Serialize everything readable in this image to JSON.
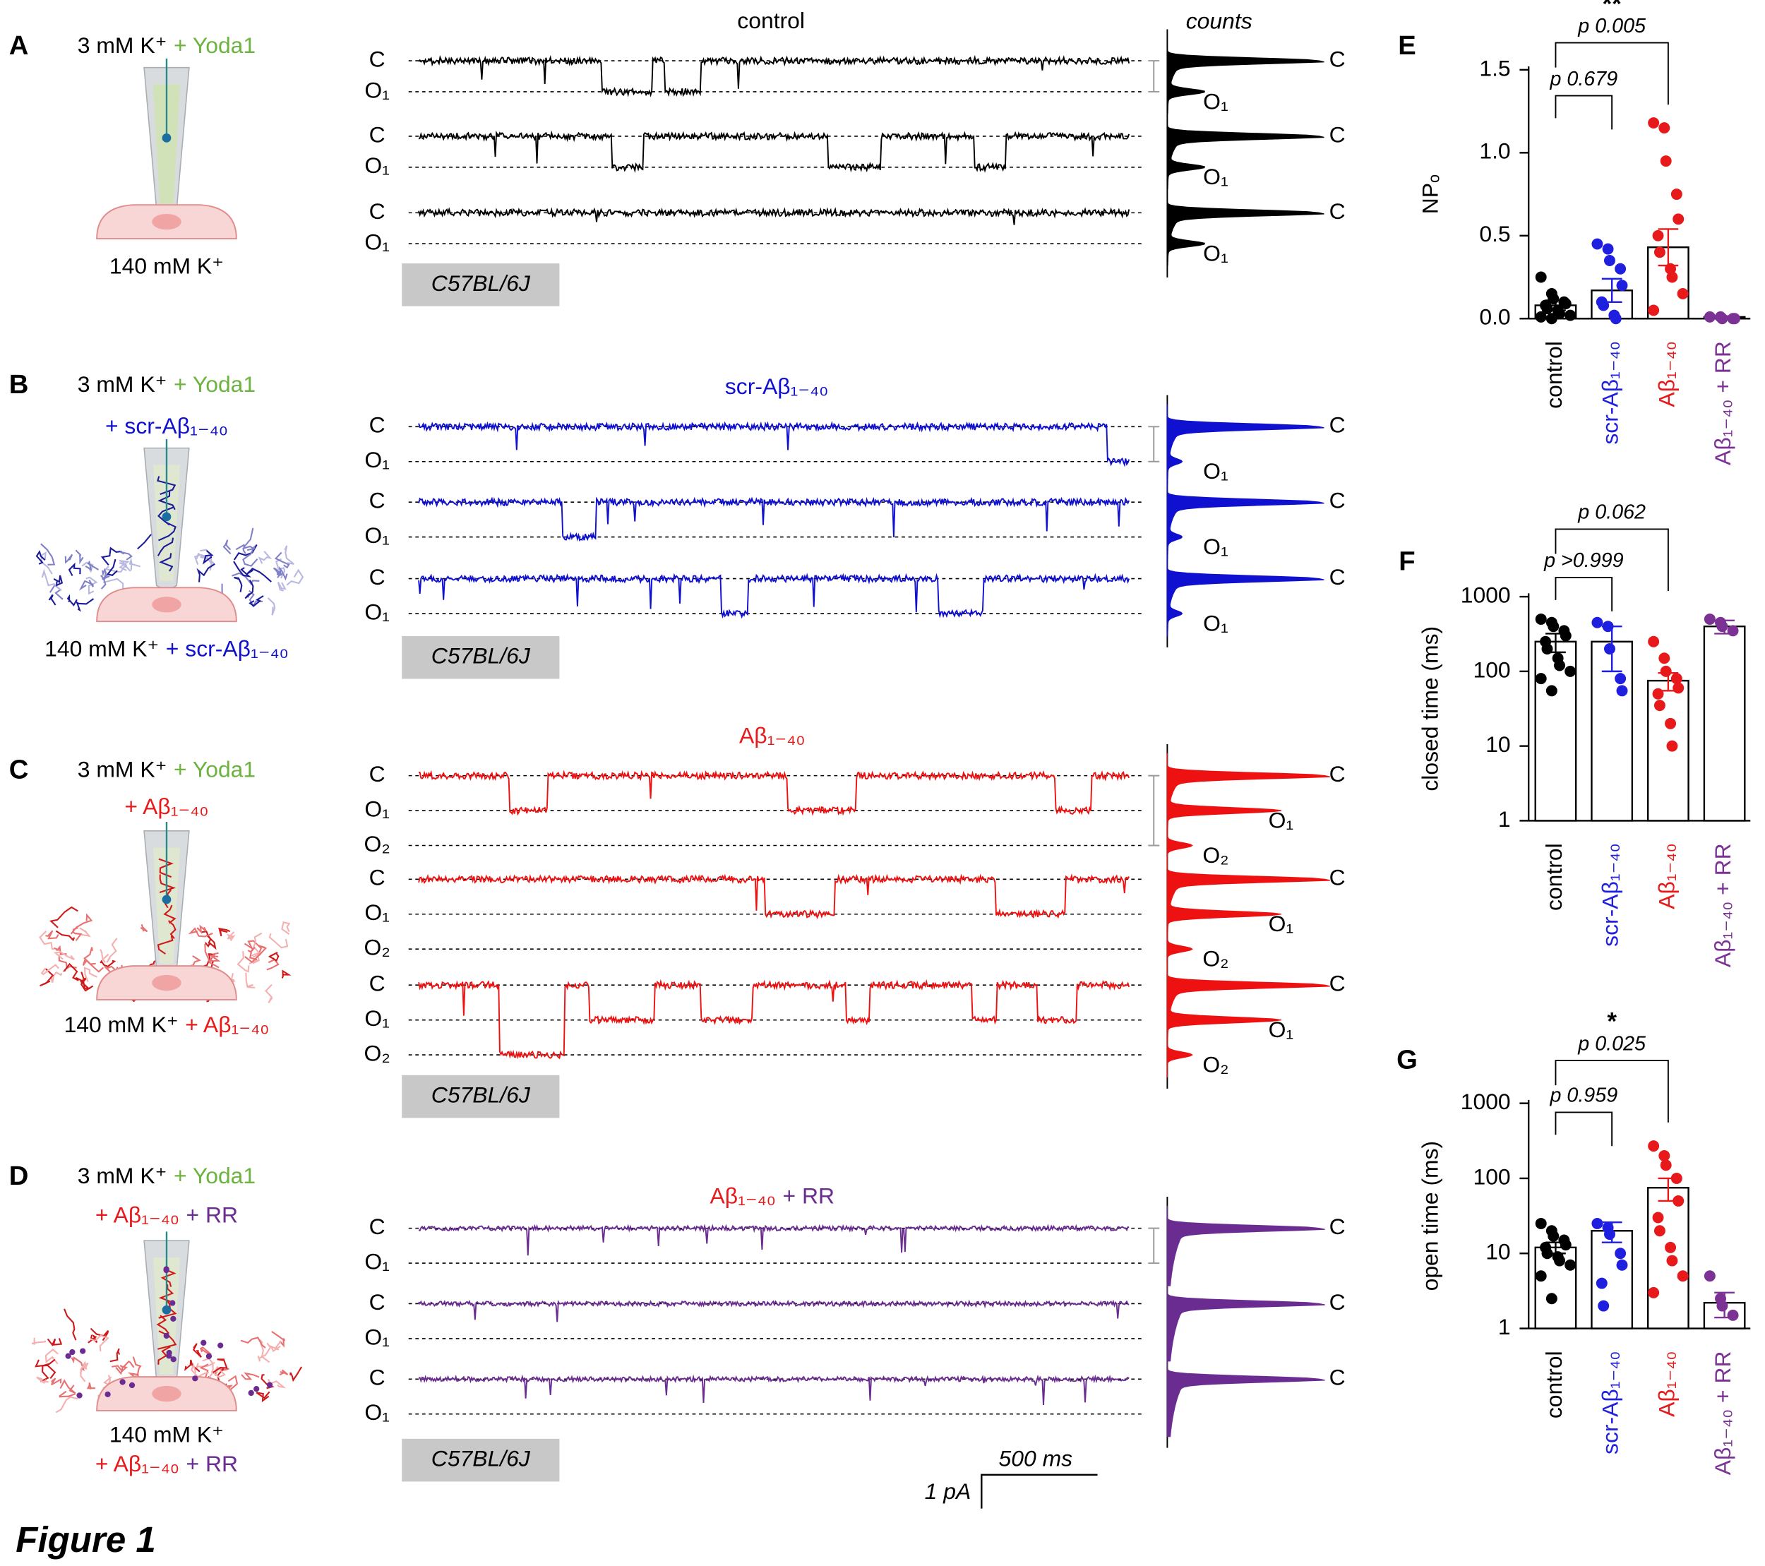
{
  "figure_label": "Figure 1",
  "scale_bar": {
    "time": "500 ms",
    "current": "1 pA"
  },
  "panels": [
    {
      "letter": "A",
      "solution_top": [
        [
          {
            "text": "3 mM K⁺",
            "color": "#000000"
          },
          {
            "text": "+ Yoda1",
            "color": "#6db33f"
          }
        ]
      ],
      "solution_bottom": [
        [
          {
            "text": "140 mM K⁺",
            "color": "#000000"
          }
        ]
      ],
      "trace_title": [
        {
          "text": "control",
          "color": "#000000"
        }
      ],
      "trace_color": "#000000",
      "histogram_header": "counts",
      "strain": "C57BL/6J",
      "traces": [
        {
          "levels": [
            "C",
            "O₁"
          ],
          "histogram_labels": [
            "C",
            "O₁"
          ]
        },
        {
          "levels": [
            "C",
            "O₁"
          ],
          "histogram_labels": [
            "C",
            "O₁"
          ]
        },
        {
          "levels": [
            "C",
            "O₁"
          ],
          "histogram_labels": [
            "C",
            "O₁"
          ]
        }
      ]
    },
    {
      "letter": "B",
      "solution_top": [
        [
          {
            "text": "3 mM K⁺",
            "color": "#000000"
          },
          {
            "text": "+ Yoda1",
            "color": "#6db33f"
          }
        ],
        [
          {
            "text": "+ scr-Aβ₁₋₄₀",
            "color": "#1010d0"
          }
        ]
      ],
      "solution_bottom": [
        [
          {
            "text": "140 mM K⁺",
            "color": "#000000"
          },
          {
            "text": "+ scr-Aβ₁₋₄₀",
            "color": "#1010d0"
          }
        ]
      ],
      "trace_title": [
        {
          "text": "scr-Aβ₁₋₄₀",
          "color": "#1010d0"
        }
      ],
      "trace_color": "#1010d0",
      "strain": "C57BL/6J",
      "traces": [
        {
          "levels": [
            "C",
            "O₁"
          ],
          "histogram_labels": [
            "C",
            "O₁"
          ]
        },
        {
          "levels": [
            "C",
            "O₁"
          ],
          "histogram_labels": [
            "C",
            "O₁"
          ]
        },
        {
          "levels": [
            "C",
            "O₁"
          ],
          "histogram_labels": [
            "C",
            "O₁"
          ]
        }
      ]
    },
    {
      "letter": "C",
      "solution_top": [
        [
          {
            "text": "3 mM K⁺",
            "color": "#000000"
          },
          {
            "text": "+ Yoda1",
            "color": "#6db33f"
          }
        ],
        [
          {
            "text": "+ Aβ₁₋₄₀",
            "color": "#e8191a"
          }
        ]
      ],
      "solution_bottom": [
        [
          {
            "text": "140 mM K⁺",
            "color": "#000000"
          },
          {
            "text": "+ Aβ₁₋₄₀",
            "color": "#e8191a"
          }
        ]
      ],
      "trace_title": [
        {
          "text": "Aβ₁₋₄₀",
          "color": "#e8191a"
        }
      ],
      "trace_color": "#ee1111",
      "strain": "C57BL/6J",
      "traces": [
        {
          "levels": [
            "C",
            "O₁",
            "O₂"
          ],
          "histogram_labels": [
            "C",
            "O₁",
            "O₂"
          ]
        },
        {
          "levels": [
            "C",
            "O₁",
            "O₂"
          ],
          "histogram_labels": [
            "C",
            "O₁",
            "O₂"
          ]
        },
        {
          "levels": [
            "C",
            "O₁",
            "O₂"
          ],
          "histogram_labels": [
            "C",
            "O₁",
            "O₂"
          ]
        }
      ]
    },
    {
      "letter": "D",
      "solution_top": [
        [
          {
            "text": "3 mM K⁺",
            "color": "#000000"
          },
          {
            "text": "+ Yoda1",
            "color": "#6db33f"
          }
        ],
        [
          {
            "text": "+ Aβ₁₋₄₀",
            "color": "#e8191a"
          },
          {
            "text": "+ RR",
            "color": "#6a2c91"
          }
        ]
      ],
      "solution_bottom": [
        [
          {
            "text": "140 mM K⁺",
            "color": "#000000"
          }
        ],
        [
          {
            "text": "+ Aβ₁₋₄₀",
            "color": "#e8191a"
          },
          {
            "text": "+ RR",
            "color": "#6a2c91"
          }
        ]
      ],
      "trace_title": [
        {
          "text": "Aβ₁₋₄₀",
          "color": "#e8191a"
        },
        {
          "text": "+ RR",
          "color": "#6a2c91"
        }
      ],
      "trace_color": "#6a2c91",
      "strain": "C57BL/6J",
      "traces": [
        {
          "levels": [
            "C",
            "O₁"
          ],
          "histogram_labels": [
            "C"
          ]
        },
        {
          "levels": [
            "C",
            "O₁"
          ],
          "histogram_labels": [
            "C"
          ]
        },
        {
          "levels": [
            "C",
            "O₁"
          ],
          "histogram_labels": [
            "C"
          ]
        }
      ]
    }
  ],
  "chart_data": [
    {
      "type": "bar",
      "letter": "E",
      "ylabel": "NPₒ",
      "categories": [
        "control",
        "scr-Aβ₁₋₄₀",
        "Aβ₁₋₄₀",
        "Aβ₁₋₄₀ + RR"
      ],
      "colors": [
        "#000000",
        "#1f1fe0",
        "#e8191a",
        "#7b3294"
      ],
      "values": [
        0.08,
        0.17,
        0.43,
        0.01
      ],
      "errors": [
        0.03,
        0.07,
        0.11,
        0.005
      ],
      "points": [
        [
          0.25,
          0.15,
          0.12,
          0.1,
          0.09,
          0.08,
          0.06,
          0.05,
          0.03,
          0.02,
          0.01,
          0
        ],
        [
          0.45,
          0.42,
          0.35,
          0.3,
          0.2,
          0.1,
          0.08,
          0.02,
          0
        ],
        [
          1.18,
          1.15,
          0.95,
          0.75,
          0.6,
          0.5,
          0.4,
          0.3,
          0.25,
          0.15,
          0.05
        ],
        [
          0.01,
          0.01,
          0,
          0,
          0
        ]
      ],
      "ylim": [
        0,
        1.5
      ],
      "yticks": [
        {
          "value": 0,
          "label": "0.0"
        },
        0.5,
        {
          "value": 1,
          "label": "1.0"
        },
        1.5
      ],
      "log_scale": false,
      "comparisons": [
        {
          "label": "p 0.679"
        },
        {
          "label": "p 0.005",
          "stars": "**"
        }
      ]
    },
    {
      "type": "bar",
      "letter": "F",
      "ylabel": "closed time (ms)",
      "categories": [
        "control",
        "scr-Aβ₁₋₄₀",
        "Aβ₁₋₄₀",
        "Aβ₁₋₄₀ + RR"
      ],
      "colors": [
        "#000000",
        "#1f1fe0",
        "#e8191a",
        "#7b3294"
      ],
      "values": [
        250,
        250,
        75,
        400
      ],
      "errors": [
        70,
        150,
        20,
        80
      ],
      "points": [
        [
          500,
          450,
          400,
          350,
          300,
          250,
          200,
          150,
          120,
          100,
          80,
          55
        ],
        [
          450,
          400,
          200,
          80,
          55
        ],
        [
          250,
          150,
          100,
          80,
          60,
          50,
          35,
          20,
          10
        ],
        [
          500,
          450,
          400,
          350
        ]
      ],
      "ylim": [
        1,
        1000
      ],
      "yticks": [
        1,
        10,
        100,
        1000
      ],
      "log_scale": true,
      "comparisons": [
        {
          "label": "p >0.999"
        },
        {
          "label": "p 0.062"
        }
      ]
    },
    {
      "type": "bar",
      "letter": "G",
      "ylabel": "open time (ms)",
      "categories": [
        "control",
        "scr-Aβ₁₋₄₀",
        "Aβ₁₋₄₀",
        "Aβ₁₋₄₀ + RR"
      ],
      "colors": [
        "#000000",
        "#1f1fe0",
        "#e8191a",
        "#7b3294"
      ],
      "values": [
        12,
        20,
        75,
        2.2
      ],
      "errors": [
        2,
        6,
        25,
        0.8
      ],
      "points": [
        [
          25,
          20,
          17,
          15,
          13,
          12,
          10,
          9,
          8,
          7,
          5,
          2.5
        ],
        [
          25,
          22,
          18,
          10,
          7,
          4,
          2
        ],
        [
          270,
          200,
          150,
          100,
          50,
          30,
          20,
          12,
          8,
          5,
          3
        ],
        [
          5,
          2.5,
          2,
          1.5
        ]
      ],
      "ylim": [
        1,
        1000
      ],
      "yticks": [
        1,
        10,
        100,
        1000
      ],
      "log_scale": true,
      "comparisons": [
        {
          "label": "p 0.959"
        },
        {
          "label": "p 0.025",
          "stars": "*"
        }
      ]
    }
  ]
}
